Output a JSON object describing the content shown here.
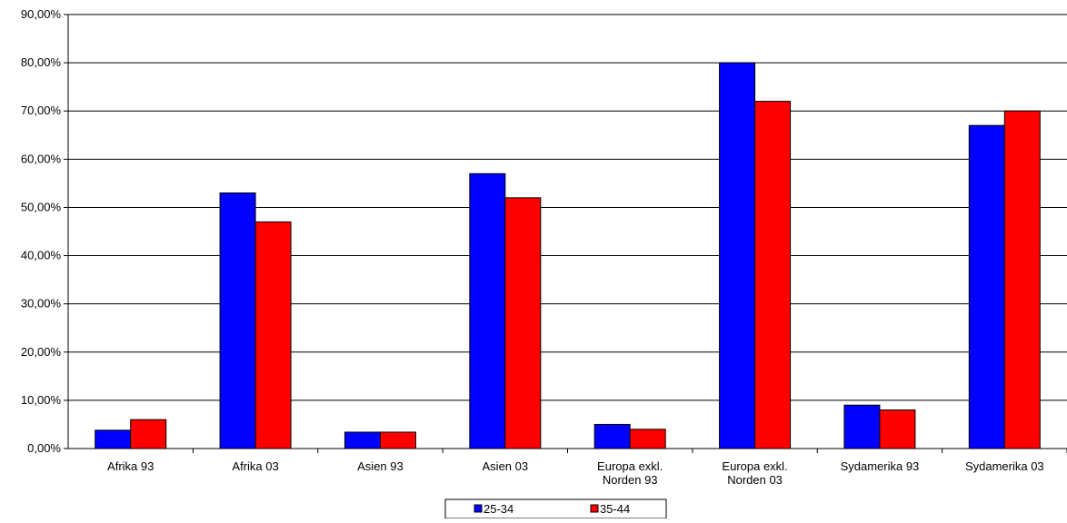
{
  "chart_data": {
    "type": "bar",
    "categories": [
      [
        "Afrika 93"
      ],
      [
        "Afrika 03"
      ],
      [
        "Asien 93"
      ],
      [
        "Asien 03"
      ],
      [
        "Europa exkl.",
        "Norden 93"
      ],
      [
        "Europa exkl.",
        "Norden 03"
      ],
      [
        "Sydamerika 93"
      ],
      [
        "Sydamerika 03"
      ]
    ],
    "series": [
      {
        "name": "25-34",
        "color": "#0000ff",
        "values": [
          3.8,
          53,
          3.4,
          57,
          5,
          80,
          9,
          67
        ]
      },
      {
        "name": "35-44",
        "color": "#ff0000",
        "values": [
          6,
          47,
          3.4,
          52,
          4,
          72,
          8,
          70
        ]
      }
    ],
    "ylim": [
      0,
      90
    ],
    "ytick_step": 10,
    "ytick_labels": [
      "0,00%",
      "10,00%",
      "20,00%",
      "30,00%",
      "40,00%",
      "50,00%",
      "60,00%",
      "70,00%",
      "80,00%",
      "90,00%"
    ],
    "grid": true,
    "legend_position": "bottom-center",
    "title": "",
    "xlabel": "",
    "ylabel": ""
  }
}
